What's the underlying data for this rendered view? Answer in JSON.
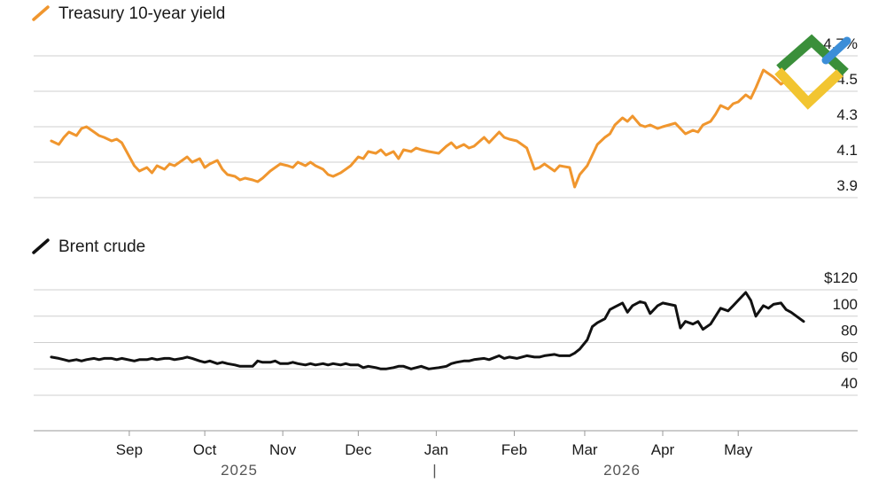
{
  "chart_data": [
    {
      "type": "line",
      "title": "Treasury 10-year yield",
      "legend": "Treasury 10-year yield",
      "color": "#f0962e",
      "yticks": [
        "3.9",
        "4.1",
        "4.3",
        "4.5",
        "4.7%"
      ],
      "ytick_values": [
        3.9,
        4.1,
        4.3,
        4.5,
        4.7
      ],
      "ylim": [
        3.9,
        4.7
      ],
      "grid": true,
      "x": [
        "2025-08-01",
        "2025-08-04",
        "2025-08-06",
        "2025-08-08",
        "2025-08-11",
        "2025-08-13",
        "2025-08-15",
        "2025-08-18",
        "2025-08-20",
        "2025-08-22",
        "2025-08-25",
        "2025-08-27",
        "2025-08-29",
        "2025-09-03",
        "2025-09-05",
        "2025-09-08",
        "2025-09-10",
        "2025-09-12",
        "2025-09-15",
        "2025-09-17",
        "2025-09-19",
        "2025-09-22",
        "2025-09-24",
        "2025-09-26",
        "2025-09-29",
        "2025-10-01",
        "2025-10-03",
        "2025-10-06",
        "2025-10-08",
        "2025-10-10",
        "2025-10-13",
        "2025-10-15",
        "2025-10-17",
        "2025-10-20",
        "2025-10-22",
        "2025-10-24",
        "2025-10-27",
        "2025-10-29",
        "2025-10-31",
        "2025-11-03",
        "2025-11-05",
        "2025-11-07",
        "2025-11-10",
        "2025-11-12",
        "2025-11-14",
        "2025-11-17",
        "2025-11-19",
        "2025-11-21",
        "2025-11-24",
        "2025-11-26",
        "2025-11-28",
        "2025-12-01",
        "2025-12-03",
        "2025-12-05",
        "2025-12-08",
        "2025-12-10",
        "2025-12-12",
        "2025-12-15",
        "2025-12-17",
        "2025-12-19",
        "2025-12-22",
        "2025-12-24",
        "2025-12-26",
        "2025-12-29",
        "2026-01-02",
        "2026-01-05",
        "2026-01-07",
        "2026-01-09",
        "2026-01-12",
        "2026-01-14",
        "2026-01-16",
        "2026-01-20",
        "2026-01-22",
        "2026-01-26",
        "2026-01-28",
        "2026-01-30",
        "2026-02-02",
        "2026-02-04",
        "2026-02-06",
        "2026-02-09",
        "2026-02-11",
        "2026-02-13",
        "2026-02-17",
        "2026-02-19",
        "2026-02-23",
        "2026-02-25",
        "2026-02-27",
        "2026-03-02",
        "2026-03-04",
        "2026-03-06",
        "2026-03-09",
        "2026-03-11",
        "2026-03-13",
        "2026-03-16",
        "2026-03-18",
        "2026-03-20",
        "2026-03-23",
        "2026-03-25",
        "2026-03-27",
        "2026-03-30",
        "2026-04-01",
        "2026-04-06",
        "2026-04-08",
        "2026-04-10",
        "2026-04-13",
        "2026-04-15",
        "2026-04-17",
        "2026-04-20",
        "2026-04-22",
        "2026-04-24",
        "2026-04-27",
        "2026-04-29",
        "2026-05-01",
        "2026-05-04",
        "2026-05-06",
        "2026-05-08",
        "2026-05-11",
        "2026-05-13",
        "2026-05-15",
        "2026-05-18",
        "2026-05-20",
        "2026-05-22",
        "2026-05-27"
      ],
      "values": [
        4.22,
        4.2,
        4.24,
        4.27,
        4.25,
        4.29,
        4.3,
        4.27,
        4.25,
        4.24,
        4.22,
        4.23,
        4.21,
        4.08,
        4.05,
        4.07,
        4.04,
        4.08,
        4.06,
        4.09,
        4.08,
        4.11,
        4.13,
        4.1,
        4.12,
        4.07,
        4.09,
        4.11,
        4.06,
        4.03,
        4.02,
        4.0,
        4.01,
        4.0,
        3.99,
        4.01,
        4.05,
        4.07,
        4.09,
        4.08,
        4.07,
        4.1,
        4.08,
        4.1,
        4.08,
        4.06,
        4.03,
        4.02,
        4.04,
        4.06,
        4.08,
        4.13,
        4.12,
        4.16,
        4.15,
        4.17,
        4.14,
        4.16,
        4.12,
        4.17,
        4.16,
        4.18,
        4.17,
        4.16,
        4.15,
        4.19,
        4.21,
        4.18,
        4.2,
        4.18,
        4.19,
        4.24,
        4.21,
        4.27,
        4.24,
        4.23,
        4.22,
        4.2,
        4.18,
        4.06,
        4.07,
        4.09,
        4.05,
        4.08,
        4.07,
        3.96,
        4.03,
        4.08,
        4.14,
        4.2,
        4.24,
        4.26,
        4.31,
        4.35,
        4.33,
        4.36,
        4.31,
        4.3,
        4.31,
        4.29,
        4.3,
        4.32,
        4.29,
        4.26,
        4.28,
        4.27,
        4.31,
        4.33,
        4.37,
        4.42,
        4.4,
        4.43,
        4.44,
        4.48,
        4.46,
        4.52,
        4.62,
        4.6,
        4.58,
        4.54,
        4.56,
        4.52,
        4.48
      ]
    },
    {
      "type": "line",
      "title": "Brent crude",
      "legend": "Brent crude",
      "color": "#111111",
      "yticks": [
        "40",
        "60",
        "80",
        "100",
        "$120"
      ],
      "ytick_values": [
        40,
        60,
        80,
        100,
        120
      ],
      "ylim": [
        40,
        120
      ],
      "grid": true,
      "x": [
        "2025-08-01",
        "2025-08-04",
        "2025-08-06",
        "2025-08-08",
        "2025-08-11",
        "2025-08-13",
        "2025-08-15",
        "2025-08-18",
        "2025-08-20",
        "2025-08-22",
        "2025-08-25",
        "2025-08-27",
        "2025-08-29",
        "2025-09-03",
        "2025-09-05",
        "2025-09-08",
        "2025-09-10",
        "2025-09-12",
        "2025-09-15",
        "2025-09-17",
        "2025-09-19",
        "2025-09-22",
        "2025-09-24",
        "2025-09-26",
        "2025-09-29",
        "2025-10-01",
        "2025-10-03",
        "2025-10-06",
        "2025-10-08",
        "2025-10-10",
        "2025-10-13",
        "2025-10-15",
        "2025-10-17",
        "2025-10-20",
        "2025-10-22",
        "2025-10-24",
        "2025-10-27",
        "2025-10-29",
        "2025-10-31",
        "2025-11-03",
        "2025-11-05",
        "2025-11-07",
        "2025-11-10",
        "2025-11-12",
        "2025-11-14",
        "2025-11-17",
        "2025-11-19",
        "2025-11-21",
        "2025-11-24",
        "2025-11-26",
        "2025-11-28",
        "2025-12-01",
        "2025-12-03",
        "2025-12-05",
        "2025-12-08",
        "2025-12-10",
        "2025-12-12",
        "2025-12-15",
        "2025-12-17",
        "2025-12-19",
        "2025-12-22",
        "2025-12-24",
        "2025-12-26",
        "2025-12-29",
        "2026-01-02",
        "2026-01-05",
        "2026-01-07",
        "2026-01-09",
        "2026-01-12",
        "2026-01-14",
        "2026-01-16",
        "2026-01-20",
        "2026-01-22",
        "2026-01-26",
        "2026-01-28",
        "2026-01-30",
        "2026-02-02",
        "2026-02-04",
        "2026-02-06",
        "2026-02-09",
        "2026-02-11",
        "2026-02-13",
        "2026-02-17",
        "2026-02-19",
        "2026-02-23",
        "2026-02-25",
        "2026-02-27",
        "2026-03-02",
        "2026-03-04",
        "2026-03-06",
        "2026-03-09",
        "2026-03-11",
        "2026-03-13",
        "2026-03-16",
        "2026-03-18",
        "2026-03-20",
        "2026-03-23",
        "2026-03-25",
        "2026-03-27",
        "2026-03-30",
        "2026-04-01",
        "2026-04-06",
        "2026-04-08",
        "2026-04-10",
        "2026-04-13",
        "2026-04-15",
        "2026-04-17",
        "2026-04-20",
        "2026-04-22",
        "2026-04-24",
        "2026-04-27",
        "2026-04-29",
        "2026-05-01",
        "2026-05-04",
        "2026-05-06",
        "2026-05-08",
        "2026-05-11",
        "2026-05-13",
        "2026-05-15",
        "2026-05-18",
        "2026-05-20",
        "2026-05-22",
        "2026-05-27"
      ],
      "values": [
        69,
        68,
        67,
        66,
        67,
        66,
        67,
        68,
        67,
        68,
        68,
        67,
        68,
        66,
        67,
        67,
        68,
        67,
        68,
        68,
        67,
        68,
        69,
        68,
        66,
        65,
        66,
        64,
        65,
        64,
        63,
        62,
        62,
        62,
        66,
        65,
        65,
        66,
        64,
        64,
        65,
        64,
        63,
        64,
        63,
        64,
        63,
        64,
        63,
        64,
        63,
        63,
        61,
        62,
        61,
        60,
        60,
        61,
        62,
        62,
        60,
        61,
        62,
        60,
        61,
        62,
        64,
        65,
        66,
        66,
        67,
        68,
        67,
        70,
        68,
        69,
        68,
        69,
        70,
        69,
        69,
        70,
        71,
        70,
        70,
        72,
        75,
        82,
        92,
        95,
        98,
        105,
        107,
        110,
        103,
        108,
        111,
        110,
        102,
        108,
        110,
        108,
        91,
        96,
        94,
        96,
        90,
        94,
        100,
        106,
        104,
        108,
        112,
        118,
        112,
        100,
        108,
        106,
        109,
        110,
        105,
        103,
        96
      ]
    }
  ],
  "x_axis": {
    "months": [
      "Sep",
      "Oct",
      "Nov",
      "Dec",
      "Jan",
      "Feb",
      "Mar",
      "Apr",
      "May"
    ],
    "years": [
      "2025",
      "|",
      "2026"
    ]
  }
}
